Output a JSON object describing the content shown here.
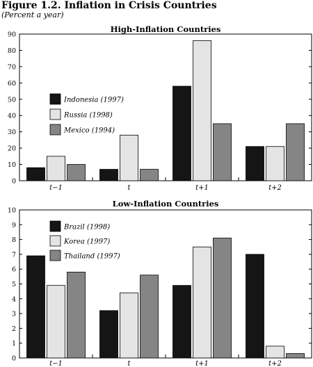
{
  "figure": {
    "title": "Figure 1.2.  Inflation in Crisis Countries",
    "subtitle": "(Percent a year)"
  },
  "colors": {
    "series": [
      "#151515",
      "#e4e4e4",
      "#858585"
    ],
    "stroke": "#000000"
  },
  "chart_data": [
    {
      "type": "bar",
      "title": "High-Inflation Countries",
      "categories": [
        "t−1",
        "t",
        "t+1",
        "t+2"
      ],
      "ylim": [
        0,
        90
      ],
      "yticks": [
        0,
        10,
        20,
        30,
        40,
        50,
        60,
        70,
        80,
        90
      ],
      "grid": false,
      "legend_position": "middle-left",
      "series": [
        {
          "name": "Indonesia (1997)",
          "values": [
            8,
            7,
            58,
            21
          ]
        },
        {
          "name": "Russia (1998)",
          "values": [
            15,
            28,
            86,
            21
          ]
        },
        {
          "name": "Mexico (1994)",
          "values": [
            10,
            7,
            35,
            35
          ]
        }
      ]
    },
    {
      "type": "bar",
      "title": "Low-Inflation Countries",
      "categories": [
        "t−1",
        "t",
        "t+1",
        "t+2"
      ],
      "ylim": [
        0,
        10
      ],
      "yticks": [
        0,
        1,
        2,
        3,
        4,
        5,
        6,
        7,
        8,
        9,
        10
      ],
      "grid": false,
      "legend_position": "top-left",
      "series": [
        {
          "name": "Brazil (1998)",
          "values": [
            6.9,
            3.2,
            4.9,
            7.0
          ]
        },
        {
          "name": "Korea (1997)",
          "values": [
            4.9,
            4.4,
            7.5,
            0.8
          ]
        },
        {
          "name": "Thailand (1997)",
          "values": [
            5.8,
            5.6,
            8.1,
            0.3
          ]
        }
      ]
    }
  ]
}
